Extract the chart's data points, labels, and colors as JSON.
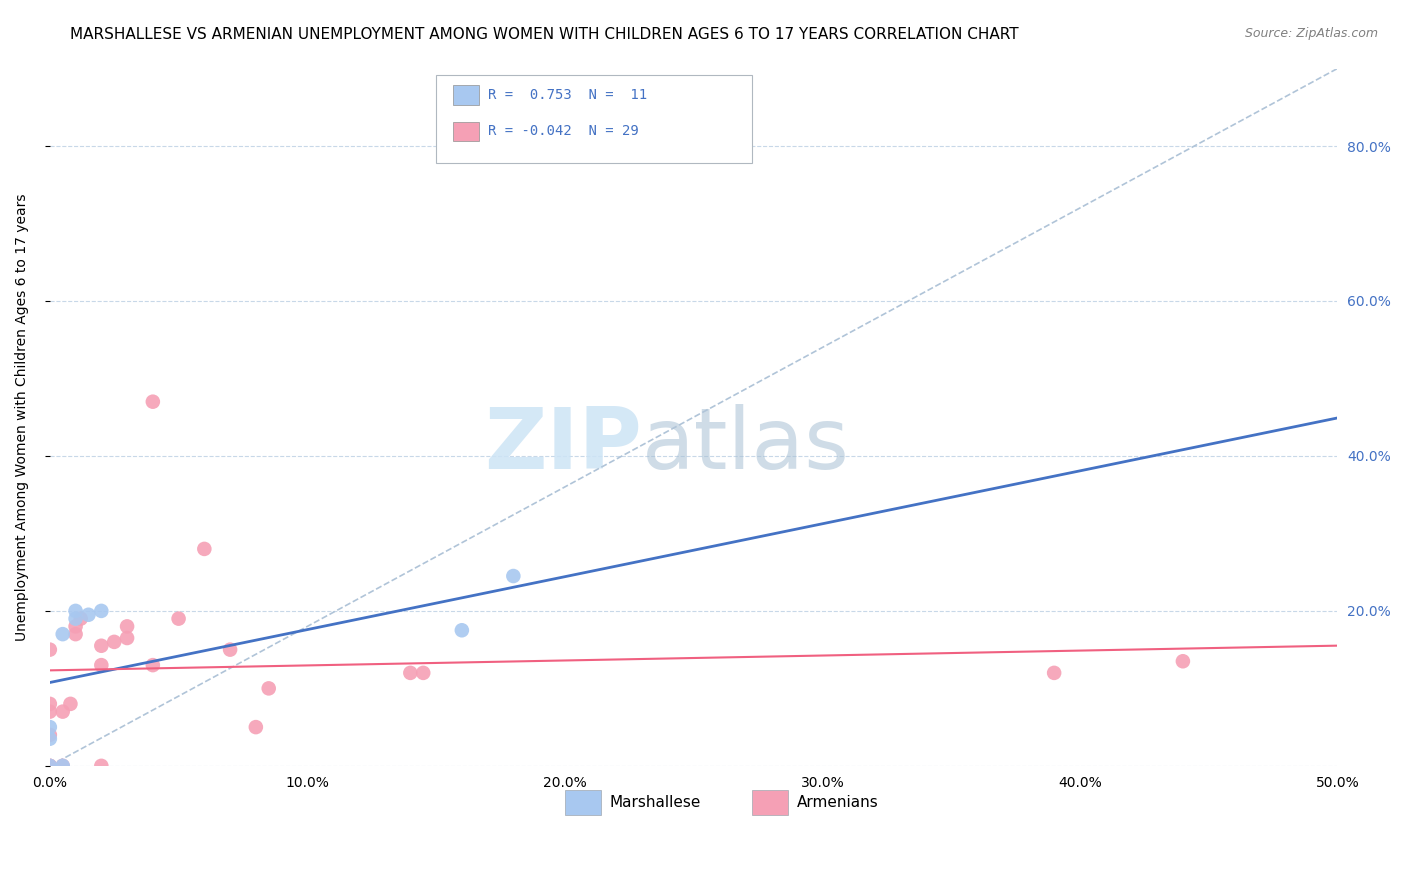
{
  "title": "MARSHALLESE VS ARMENIAN UNEMPLOYMENT AMONG WOMEN WITH CHILDREN AGES 6 TO 17 YEARS CORRELATION CHART",
  "source": "Source: ZipAtlas.com",
  "ylabel": "Unemployment Among Women with Children Ages 6 to 17 years",
  "xlim": [
    0.0,
    0.5
  ],
  "ylim": [
    0.0,
    0.9
  ],
  "xticks": [
    0.0,
    0.1,
    0.2,
    0.3,
    0.4,
    0.5
  ],
  "xtick_labels": [
    "0.0%",
    "10.0%",
    "20.0%",
    "30.0%",
    "40.0%",
    "50.0%"
  ],
  "yticks": [
    0.0,
    0.2,
    0.4,
    0.6,
    0.8
  ],
  "ytick_labels": [
    "",
    "20.0%",
    "40.0%",
    "60.0%",
    "80.0%"
  ],
  "legend_labels": [
    "Marshallese",
    "Armenians"
  ],
  "marshallese_color": "#a8c8f0",
  "armenian_color": "#f5a0b5",
  "marshallese_line_color": "#4472c4",
  "armenian_line_color": "#f06080",
  "diagonal_color": "#b0c4d8",
  "background_color": "#ffffff",
  "tick_color": "#4472c4",
  "marshallese_x": [
    0.0,
    0.0,
    0.0,
    0.005,
    0.005,
    0.01,
    0.01,
    0.015,
    0.02,
    0.16,
    0.18
  ],
  "marshallese_y": [
    0.0,
    0.035,
    0.05,
    0.0,
    0.17,
    0.19,
    0.2,
    0.195,
    0.2,
    0.175,
    0.245
  ],
  "armenian_x": [
    0.0,
    0.0,
    0.0,
    0.0,
    0.0,
    0.0,
    0.005,
    0.005,
    0.008,
    0.01,
    0.01,
    0.012,
    0.02,
    0.02,
    0.02,
    0.025,
    0.03,
    0.03,
    0.04,
    0.04,
    0.05,
    0.06,
    0.07,
    0.08,
    0.085,
    0.14,
    0.145,
    0.39,
    0.44
  ],
  "armenian_y": [
    0.0,
    0.0,
    0.04,
    0.07,
    0.08,
    0.15,
    0.0,
    0.07,
    0.08,
    0.17,
    0.18,
    0.19,
    0.0,
    0.13,
    0.155,
    0.16,
    0.165,
    0.18,
    0.13,
    0.47,
    0.19,
    0.28,
    0.15,
    0.05,
    0.1,
    0.12,
    0.12,
    0.12,
    0.135
  ],
  "point_size": 110,
  "title_fontsize": 11,
  "axis_fontsize": 10,
  "tick_fontsize": 10,
  "legend_fontsize": 11,
  "source_fontsize": 9
}
